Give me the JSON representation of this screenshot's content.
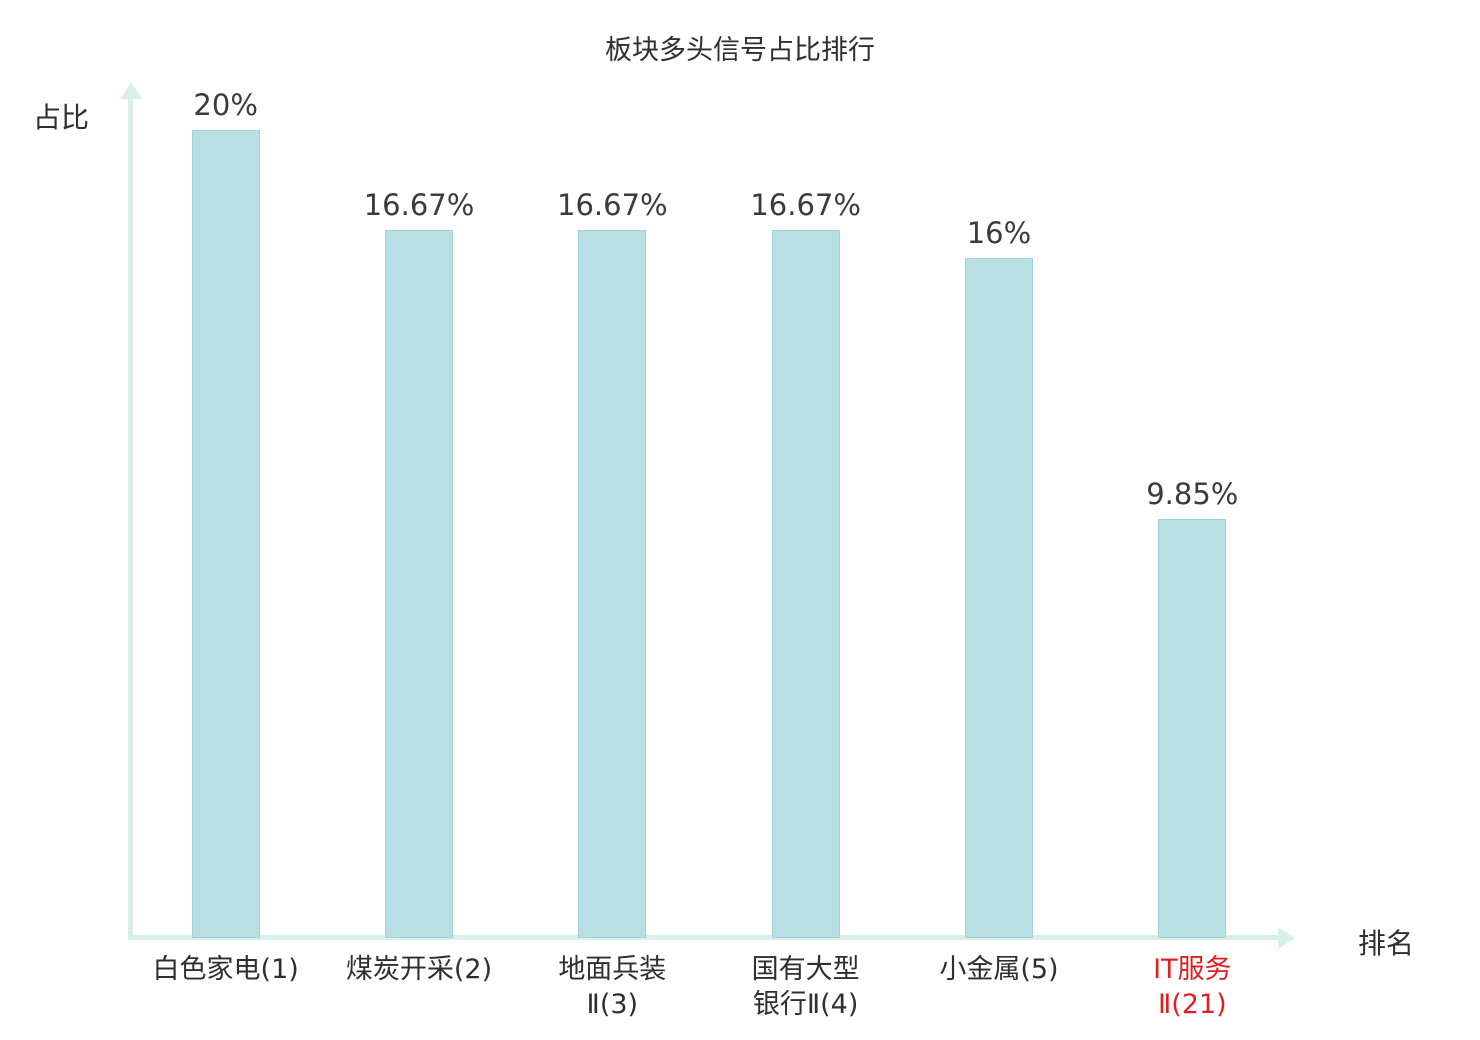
{
  "chart_data": {
    "type": "bar",
    "title": "板块多头信号占比排行",
    "xlabel": "排名",
    "ylabel": "占比",
    "ylim": [
      0,
      20
    ],
    "grid": false,
    "legend": false,
    "categories": [
      "白色家电(1)",
      "煤炭开采(2)",
      "地面兵装Ⅱ(3)",
      "国有大型银行Ⅱ(4)",
      "小金属(5)",
      "IT服务Ⅱ(21)"
    ],
    "values": [
      20,
      16.67,
      16.67,
      16.67,
      16,
      9.85
    ],
    "bars": [
      {
        "category_lines": [
          "白色家电(1)"
        ],
        "value": 20,
        "value_label": "20%",
        "highlighted": false
      },
      {
        "category_lines": [
          "煤炭开采(2)"
        ],
        "value": 16.67,
        "value_label": "16.67%",
        "highlighted": false
      },
      {
        "category_lines": [
          "地面兵装",
          "Ⅱ(3)"
        ],
        "value": 16.67,
        "value_label": "16.67%",
        "highlighted": false
      },
      {
        "category_lines": [
          "国有大型",
          "银行Ⅱ(4)"
        ],
        "value": 16.67,
        "value_label": "16.67%",
        "highlighted": false
      },
      {
        "category_lines": [
          "小金属(5)"
        ],
        "value": 16,
        "value_label": "16%",
        "highlighted": false
      },
      {
        "category_lines": [
          "IT服务",
          "Ⅱ(21)"
        ],
        "value": 9.85,
        "value_label": "9.85%",
        "highlighted": true
      }
    ]
  },
  "colors": {
    "bar_fill": "#b8dfe3",
    "bar_border": "#a3d2d8",
    "axis": "#d9efec",
    "text": "#3b3b3b",
    "highlight": "#e02020"
  }
}
